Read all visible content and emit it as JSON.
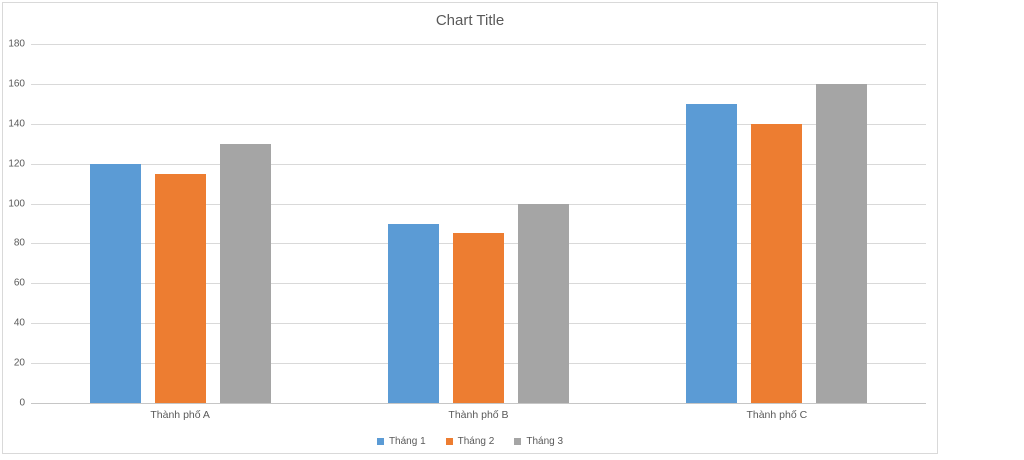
{
  "chart_data": {
    "type": "bar",
    "title": "Chart Title",
    "categories": [
      "Thành phố A",
      "Thành phố B",
      "Thành phố C"
    ],
    "series": [
      {
        "name": "Tháng 1",
        "color": "#5B9BD5",
        "values": [
          120,
          90,
          150
        ]
      },
      {
        "name": "Tháng 2",
        "color": "#ED7D31",
        "values": [
          115,
          85,
          140
        ]
      },
      {
        "name": "Tháng 3",
        "color": "#A5A5A5",
        "values": [
          130,
          100,
          160
        ]
      }
    ],
    "xlabel": "",
    "ylabel": "",
    "ylim": [
      0,
      180
    ],
    "yticks": [
      0,
      20,
      40,
      60,
      80,
      100,
      120,
      140,
      160,
      180
    ],
    "grid": true,
    "legend_position": "bottom",
    "colors": {
      "text": "#595959",
      "gridline": "#D9D9D9",
      "frame_border": "#D9D9D9",
      "background": "#FFFFFF"
    }
  }
}
